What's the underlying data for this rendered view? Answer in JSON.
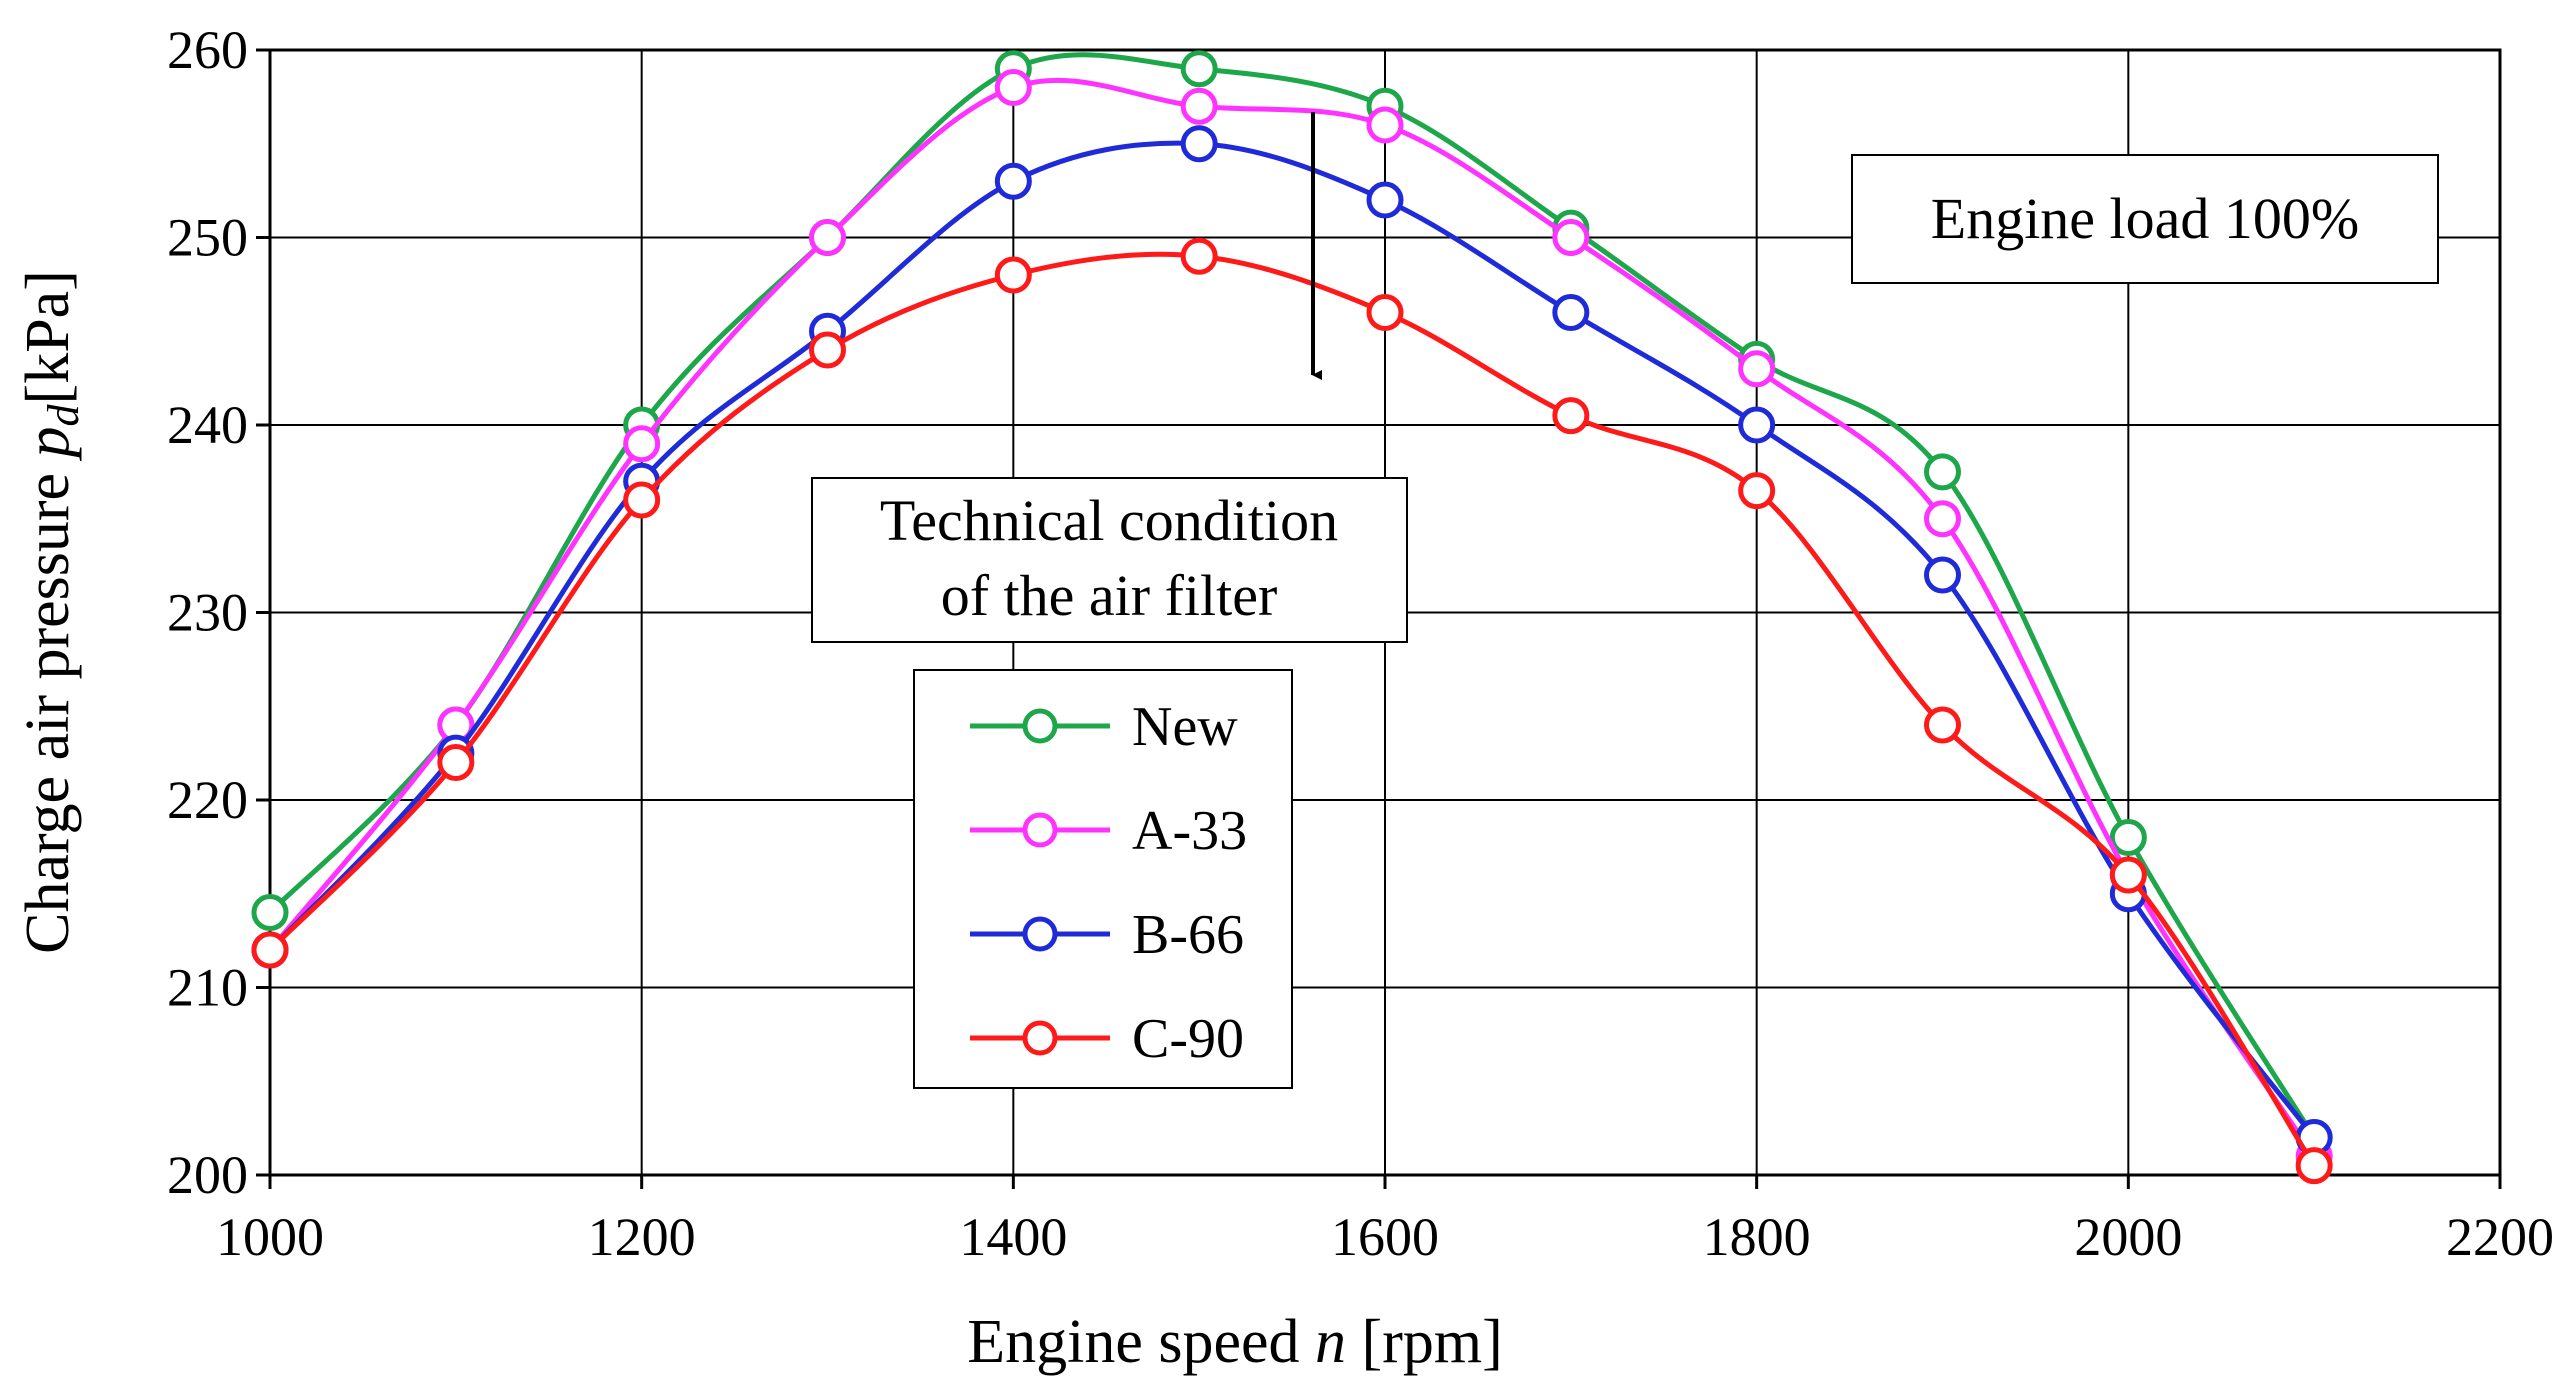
{
  "chart_data": {
    "type": "line",
    "title": "",
    "xlabel": "Engine speed",
    "xlabel_symbol": "n",
    "xlabel_unit": "[rpm]",
    "ylabel": "Charge air pressure",
    "ylabel_symbol": "p",
    "ylabel_subscript": "d",
    "ylabel_unit": "[kPa]",
    "xlim": [
      1000,
      2200
    ],
    "ylim": [
      200,
      260
    ],
    "x_ticks": [
      1000,
      1200,
      1400,
      1600,
      1800,
      2000,
      2200
    ],
    "y_ticks": [
      200,
      210,
      220,
      230,
      240,
      250,
      260
    ],
    "grid": true,
    "x": [
      1000,
      1100,
      1200,
      1300,
      1400,
      1500,
      1600,
      1700,
      1800,
      1900,
      2000,
      2100
    ],
    "series": [
      {
        "name": "New",
        "color": "#1ea64b",
        "values": [
          214,
          224,
          240,
          250,
          259,
          259,
          257,
          250.5,
          243.5,
          237.5,
          218,
          202
        ]
      },
      {
        "name": "A-33",
        "color": "#ff33ff",
        "values": [
          212,
          224,
          239,
          250,
          258,
          257,
          256,
          250,
          243,
          235,
          216,
          201
        ]
      },
      {
        "name": "B-66",
        "color": "#1f2bd8",
        "values": [
          212,
          222.5,
          237,
          245,
          253,
          255,
          252,
          246,
          240,
          232,
          215,
          202
        ]
      },
      {
        "name": "C-90",
        "color": "#ff1a1a",
        "values": [
          212,
          222,
          236,
          244,
          248,
          249,
          246,
          240.5,
          236.5,
          224,
          216,
          200.5
        ]
      }
    ],
    "annotations": {
      "load_box": "Engine load 100%",
      "condition_box_line1": "Technical condition",
      "condition_box_line2": "of the air filter",
      "arrow_direction": "down"
    },
    "legend_position": "center"
  }
}
